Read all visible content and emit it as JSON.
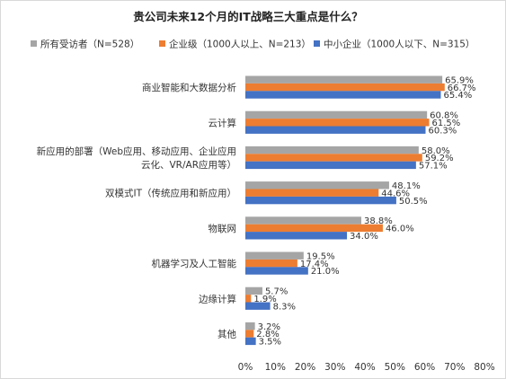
{
  "chart_data": {
    "type": "bar",
    "orientation": "horizontal",
    "title": "贵公司未来12个月的IT战略三大重点是什么？",
    "categories": [
      [
        "商业智能和大数据分析"
      ],
      [
        "云计算"
      ],
      [
        "新应用的部署（Web应用、移动应用、企业应用",
        "云化、VR/AR应用等）"
      ],
      [
        "双模式IT（传统应用和新应用）"
      ],
      [
        "物联网"
      ],
      [
        "机器学习及人工智能"
      ],
      [
        "边缘计算"
      ],
      [
        "其他"
      ]
    ],
    "series": [
      {
        "name": "所有受访者（N=528）",
        "color": "#a5a5a5",
        "values": [
          65.9,
          60.8,
          58.0,
          48.1,
          38.8,
          19.5,
          5.7,
          3.2
        ],
        "labels": [
          "65.9%",
          "60.8%",
          "58.0%",
          "48.1%",
          "38.8%",
          "19.5%",
          "5.7%",
          "3.2%"
        ]
      },
      {
        "name": "企业级（1000人以上、N=213）",
        "color": "#ed7d31",
        "values": [
          66.7,
          61.5,
          59.2,
          44.6,
          46.0,
          17.4,
          1.9,
          2.8
        ],
        "labels": [
          "66.7%",
          "61.5%",
          "59.2%",
          "44.6%",
          "46.0%",
          "17.4%",
          "1.9%",
          "2.8%"
        ]
      },
      {
        "name": "中小企业（1000人以下、N=315）",
        "color": "#4472c4",
        "values": [
          65.4,
          60.3,
          57.1,
          50.5,
          34.0,
          21.0,
          8.3,
          3.5
        ],
        "labels": [
          "65.4%",
          "60.3%",
          "57.1%",
          "50.5%",
          "34.0%",
          "21.0%",
          "8.3%",
          "3.5%"
        ]
      }
    ],
    "xlim": [
      0,
      80
    ],
    "xticks": [
      "0%",
      "10%",
      "20%",
      "30%",
      "40%",
      "50%",
      "60%",
      "70%",
      "80%"
    ],
    "legend": "top",
    "grid": false
  }
}
